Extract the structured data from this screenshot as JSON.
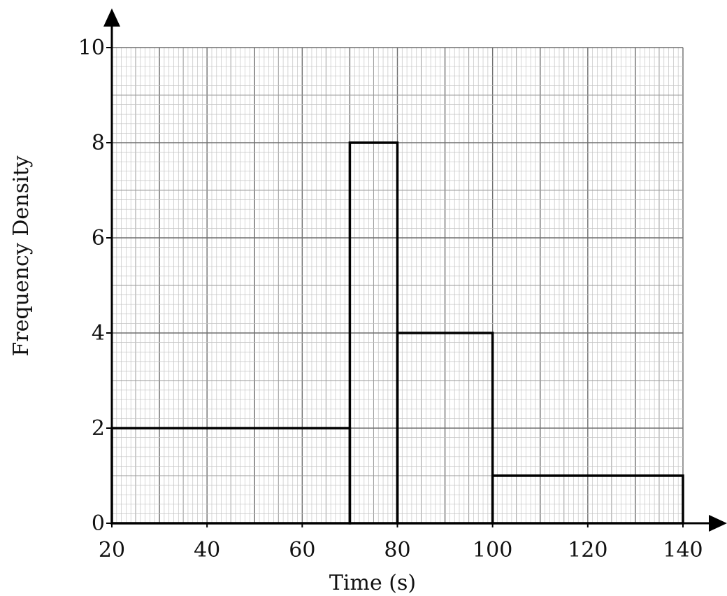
{
  "chart_data": {
    "type": "bar",
    "subtype": "histogram",
    "xlabel": "Time (s)",
    "ylabel": "Frequency Density",
    "xlim": [
      20,
      140
    ],
    "ylim": [
      0,
      10
    ],
    "x_ticks": [
      20,
      40,
      60,
      80,
      100,
      120,
      140
    ],
    "y_ticks": [
      0,
      2,
      4,
      6,
      8,
      10
    ],
    "grid": true,
    "bins": [
      {
        "x0": 20,
        "x1": 70,
        "value": 2
      },
      {
        "x0": 70,
        "x1": 80,
        "value": 8
      },
      {
        "x0": 80,
        "x1": 100,
        "value": 4
      },
      {
        "x0": 100,
        "x1": 140,
        "value": 1
      }
    ]
  }
}
